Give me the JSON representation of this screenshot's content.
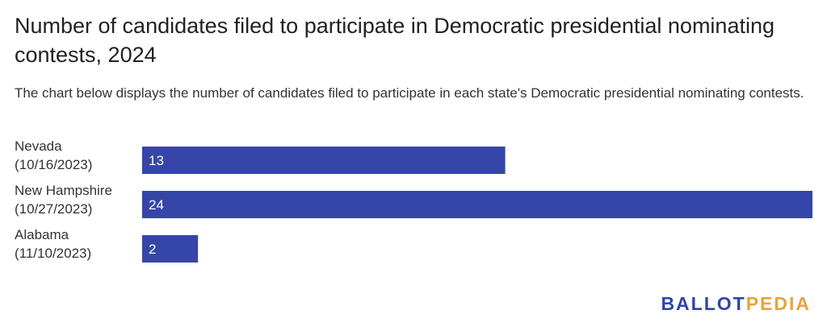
{
  "chart_data": {
    "type": "bar",
    "orientation": "horizontal",
    "title": "Number of candidates filed to participate in Democratic presidential nominating contests, 2024",
    "subtitle": "The chart below displays the number of candidates filed to participate in each state's Democratic presidential nominating contests.",
    "categories": [
      [
        "Nevada",
        "(10/16/2023)"
      ],
      [
        "New Hampshire",
        "(10/27/2023)"
      ],
      [
        "Alabama",
        "(11/10/2023)"
      ]
    ],
    "values": [
      13,
      24,
      2
    ],
    "xlim": [
      0,
      24
    ],
    "bar_color": "#3546a8",
    "grid": false,
    "legend": "none"
  },
  "logo": {
    "part1": "BALLOT",
    "part2": "PEDIA",
    "color1": "#2f46a8",
    "color2": "#e8a33d"
  }
}
